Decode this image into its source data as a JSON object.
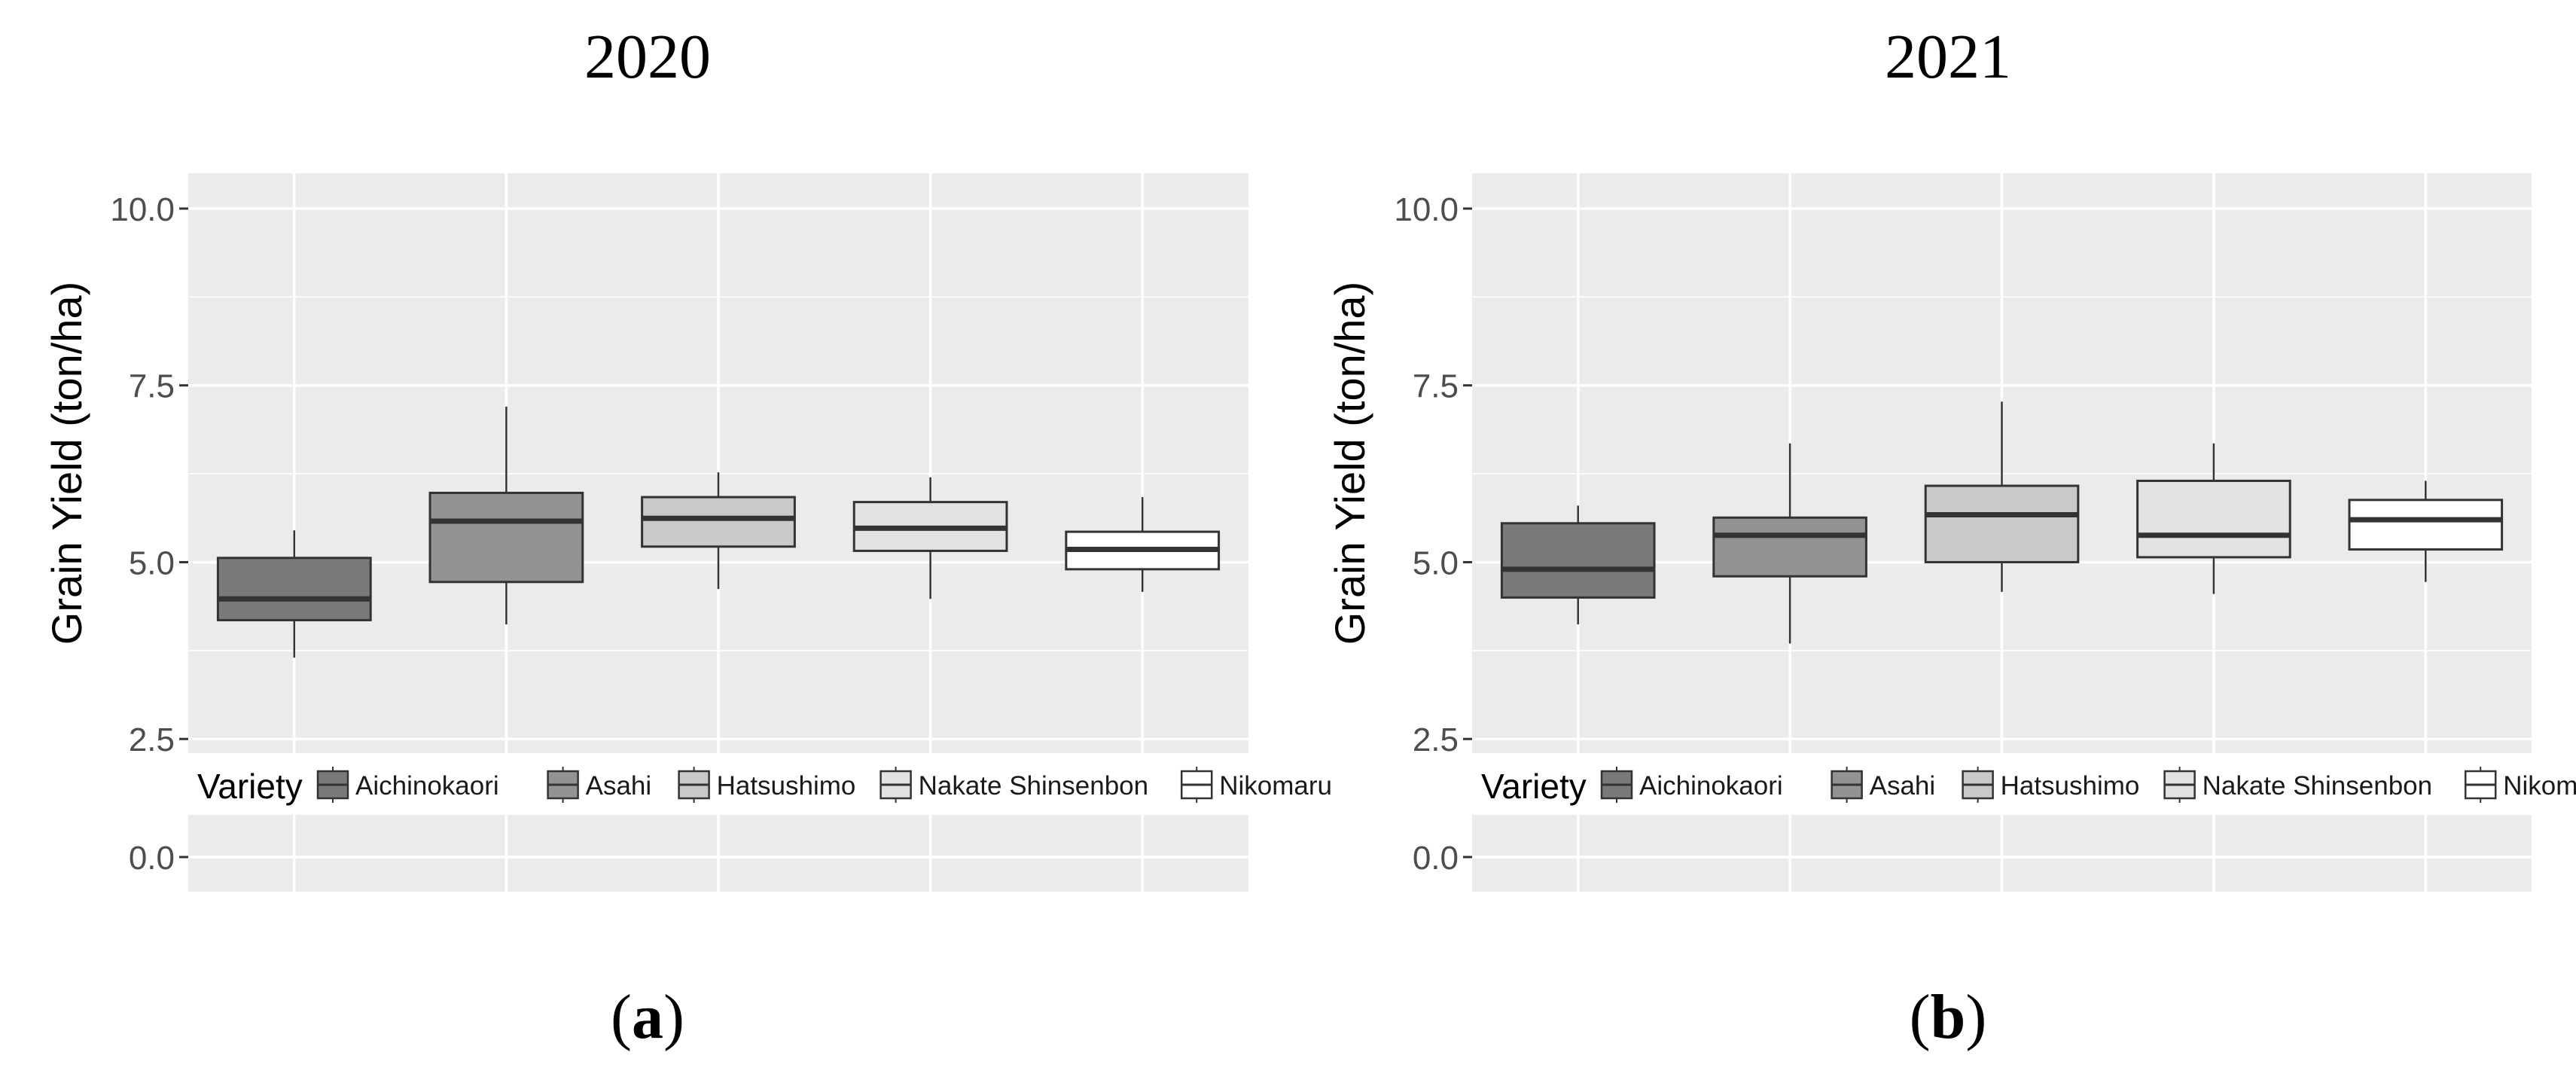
{
  "chart_data": [
    {
      "type": "boxplot",
      "title": "2020",
      "panel_label": "a",
      "xlabel": "",
      "ylabel": "Grain Yield (ton/ha)",
      "ylim": [
        -0.5,
        10.5
      ],
      "yticks": [
        0.0,
        2.5,
        5.0,
        7.5,
        10.0
      ],
      "ytick_labels": [
        "0.0",
        "2.5",
        "5.0",
        "7.5",
        "10.0"
      ],
      "grid": true,
      "legend": {
        "title": "Variety",
        "placement": "bottom-inside"
      },
      "categories": [
        "Aichinokaori",
        "Asahi",
        "Hatsushimo",
        "Nakate Shinsenbon",
        "Nikomaru"
      ],
      "boxes": [
        {
          "name": "Aichinokaori",
          "whisker_low": 3.65,
          "q1": 4.18,
          "median": 4.48,
          "q3": 5.06,
          "whisker_high": 5.45,
          "fill": "#7a7a7a"
        },
        {
          "name": "Asahi",
          "whisker_low": 4.12,
          "q1": 4.72,
          "median": 5.58,
          "q3": 5.98,
          "whisker_high": 7.2,
          "fill": "#939393"
        },
        {
          "name": "Hatsushimo",
          "whisker_low": 4.62,
          "q1": 5.22,
          "median": 5.62,
          "q3": 5.92,
          "whisker_high": 6.27,
          "fill": "#c9c9c9"
        },
        {
          "name": "Nakate Shinsenbon",
          "whisker_low": 4.48,
          "q1": 5.16,
          "median": 5.48,
          "q3": 5.85,
          "whisker_high": 6.2,
          "fill": "#e2e2e2"
        },
        {
          "name": "Nikomaru",
          "whisker_low": 4.58,
          "q1": 4.9,
          "median": 5.18,
          "q3": 5.43,
          "whisker_high": 5.92,
          "fill": "#ffffff"
        }
      ]
    },
    {
      "type": "boxplot",
      "title": "2021",
      "panel_label": "b",
      "xlabel": "",
      "ylabel": "Grain Yield (ton/ha)",
      "ylim": [
        -0.5,
        10.5
      ],
      "yticks": [
        0.0,
        2.5,
        5.0,
        7.5,
        10.0
      ],
      "ytick_labels": [
        "0.0",
        "2.5",
        "5.0",
        "7.5",
        "10.0"
      ],
      "grid": true,
      "legend": {
        "title": "Variety",
        "placement": "bottom-inside"
      },
      "categories": [
        "Aichinokaori",
        "Asahi",
        "Hatsushimo",
        "Nakate Shinsenbon",
        "Nikomaru"
      ],
      "boxes": [
        {
          "name": "Aichinokaori",
          "whisker_low": 4.12,
          "q1": 4.5,
          "median": 4.9,
          "q3": 5.55,
          "whisker_high": 5.8,
          "fill": "#7a7a7a"
        },
        {
          "name": "Asahi",
          "whisker_low": 3.85,
          "q1": 4.8,
          "median": 5.38,
          "q3": 5.63,
          "whisker_high": 6.68,
          "fill": "#939393"
        },
        {
          "name": "Hatsushimo",
          "whisker_low": 4.58,
          "q1": 5.0,
          "median": 5.67,
          "q3": 6.08,
          "whisker_high": 7.27,
          "fill": "#c9c9c9"
        },
        {
          "name": "Nakate Shinsenbon",
          "whisker_low": 4.55,
          "q1": 5.07,
          "median": 5.38,
          "q3": 6.15,
          "whisker_high": 6.68,
          "fill": "#e2e2e2"
        },
        {
          "name": "Nikomaru",
          "whisker_low": 4.72,
          "q1": 5.18,
          "median": 5.6,
          "q3": 5.88,
          "whisker_high": 6.15,
          "fill": "#ffffff"
        }
      ]
    }
  ],
  "colors": {
    "panel_background": "#ebebeb",
    "grid_line": "#ffffff",
    "box_outline": "#333333",
    "median_line": "#333333",
    "axis_text": "#4d4d4d",
    "title_text": "#000000"
  }
}
